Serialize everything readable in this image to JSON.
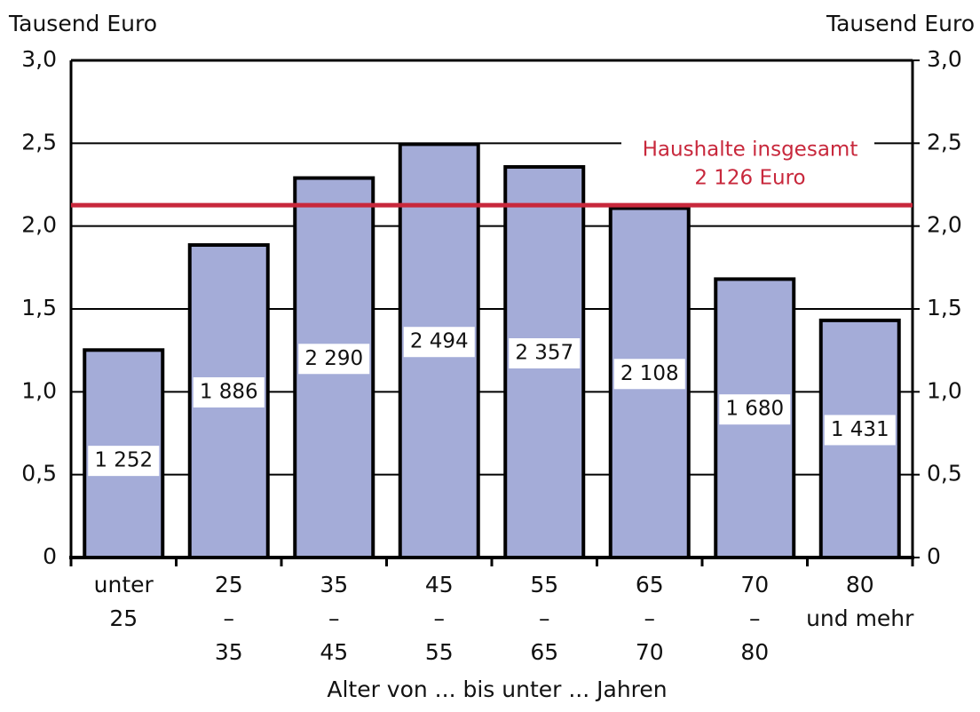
{
  "chart_data": {
    "type": "bar",
    "y_label": "Tausend Euro",
    "y2_label": "Tausend Euro",
    "x_label": "Alter von ... bis unter ... Jahren",
    "categories": [
      [
        "unter",
        "25"
      ],
      [
        "25",
        "–",
        "35"
      ],
      [
        "35",
        "–",
        "45"
      ],
      [
        "45",
        "–",
        "55"
      ],
      [
        "55",
        "–",
        "65"
      ],
      [
        "65",
        "–",
        "70"
      ],
      [
        "70",
        "–",
        "80"
      ],
      [
        "80",
        "und mehr"
      ]
    ],
    "values": [
      1.252,
      1.886,
      2.29,
      2.494,
      2.357,
      2.108,
      1.68,
      1.431
    ],
    "value_labels": [
      "1 252",
      "1 886",
      "2 290",
      "2 494",
      "2 357",
      "2 108",
      "1 680",
      "1 431"
    ],
    "color": "#a4acd8",
    "ylim": [
      0,
      3
    ],
    "yticks": [
      0,
      {
        "value": 0.5,
        "label": "0,5"
      },
      {
        "value": 1,
        "label": "1,0"
      },
      {
        "value": 1.5,
        "label": "1,5"
      },
      {
        "value": 2,
        "label": "2,0"
      },
      {
        "value": 2.5,
        "label": "2,5"
      },
      {
        "value": 3,
        "label": "3,0"
      }
    ],
    "y2lim": [
      0,
      3
    ],
    "y2ticks": [
      0,
      {
        "value": 0.5,
        "label": "0,5"
      },
      {
        "value": 1,
        "label": "1,0"
      },
      {
        "value": 1.5,
        "label": "1,5"
      },
      {
        "value": 2,
        "label": "2,0"
      },
      {
        "value": 2.5,
        "label": "2,5"
      },
      {
        "value": 3,
        "label": "3,0"
      }
    ],
    "grid": true,
    "reference": {
      "value": 2.126,
      "label": [
        "Haushalte insgesamt",
        "2  126 Euro"
      ],
      "color": "#c8283c"
    }
  }
}
